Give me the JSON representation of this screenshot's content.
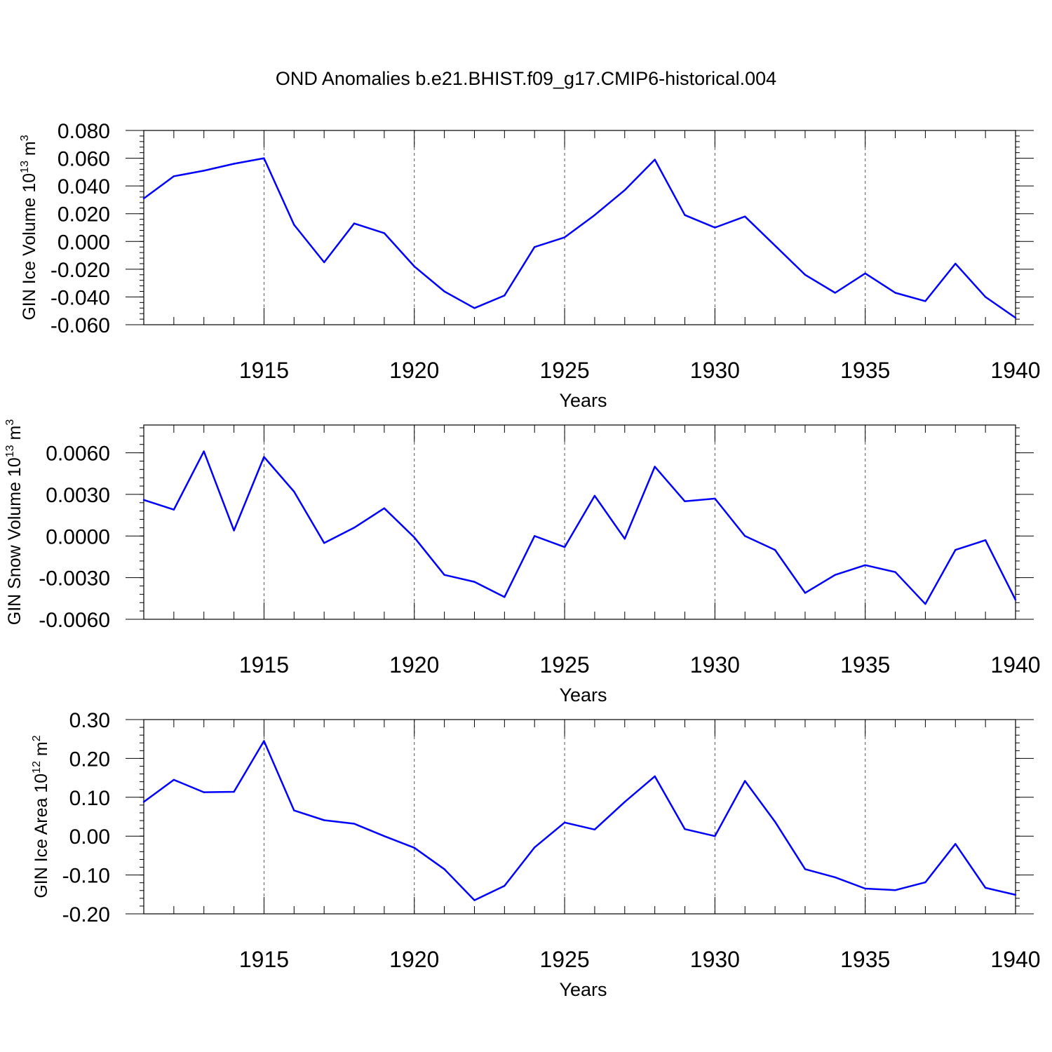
{
  "title": "OND Anomalies b.e21.BHIST.f09_g17.CMIP6-historical.004",
  "colors": {
    "series": "#0000ff",
    "axis": "#000000",
    "grid": "#555555"
  },
  "chart_data": [
    {
      "type": "line",
      "ylabel": {
        "main": "GIN Ice Volume 10",
        "sup": "13",
        "tail": " m",
        "sup2": "3"
      },
      "xlabel": "Years",
      "xlim": [
        1911,
        1940
      ],
      "ylim": [
        -0.06,
        0.08
      ],
      "y_ticks": [
        "0.080",
        "0.060",
        "0.040",
        "0.020",
        "0.000",
        "-0.020",
        "-0.040",
        "-0.060"
      ],
      "y_tick_values": [
        0.08,
        0.06,
        0.04,
        0.02,
        0.0,
        -0.02,
        -0.04,
        -0.06
      ],
      "x_ticks": [
        "1915",
        "1920",
        "1925",
        "1930",
        "1935",
        "1940"
      ],
      "x_tick_values": [
        1915,
        1920,
        1925,
        1930,
        1935,
        1940
      ],
      "grid": "vertical dashed at major x ticks",
      "x": [
        1911,
        1912,
        1913,
        1914,
        1915,
        1916,
        1917,
        1918,
        1919,
        1920,
        1921,
        1922,
        1923,
        1924,
        1925,
        1926,
        1927,
        1928,
        1929,
        1930,
        1931,
        1932,
        1933,
        1934,
        1935,
        1936,
        1937,
        1938,
        1939,
        1940
      ],
      "values": [
        0.031,
        0.047,
        0.051,
        0.056,
        0.06,
        0.012,
        -0.015,
        0.013,
        0.006,
        -0.018,
        -0.036,
        -0.048,
        -0.039,
        -0.004,
        0.003,
        0.019,
        0.037,
        0.059,
        0.019,
        0.01,
        0.018,
        -0.003,
        -0.024,
        -0.037,
        -0.023,
        -0.037,
        -0.043,
        -0.016,
        -0.04,
        -0.055
      ]
    },
    {
      "type": "line",
      "ylabel": {
        "main": "GIN Snow Volume 10",
        "sup": "13",
        "tail": " m",
        "sup2": "3"
      },
      "xlabel": "Years",
      "xlim": [
        1911,
        1940
      ],
      "ylim": [
        -0.006,
        0.008
      ],
      "y_ticks": [
        "0.0060",
        "0.0030",
        "0.0000",
        "-0.0030",
        "-0.0060"
      ],
      "y_tick_values": [
        0.006,
        0.003,
        0.0,
        -0.003,
        -0.006
      ],
      "x_ticks": [
        "1915",
        "1920",
        "1925",
        "1930",
        "1935",
        "1940"
      ],
      "x_tick_values": [
        1915,
        1920,
        1925,
        1930,
        1935,
        1940
      ],
      "grid": "vertical dashed at major x ticks",
      "x": [
        1911,
        1912,
        1913,
        1914,
        1915,
        1916,
        1917,
        1918,
        1919,
        1920,
        1921,
        1922,
        1923,
        1924,
        1925,
        1926,
        1927,
        1928,
        1929,
        1930,
        1931,
        1932,
        1933,
        1934,
        1935,
        1936,
        1937,
        1938,
        1939,
        1940
      ],
      "values": [
        0.0026,
        0.0019,
        0.0061,
        0.0004,
        0.0057,
        0.0032,
        -0.0005,
        0.0006,
        0.002,
        -0.0001,
        -0.0028,
        -0.0033,
        -0.0044,
        0.0,
        -0.0008,
        0.0029,
        -0.0002,
        0.005,
        0.0025,
        0.0027,
        0.0,
        -0.001,
        -0.0041,
        -0.0028,
        -0.0021,
        -0.0026,
        -0.0049,
        -0.001,
        -0.0003,
        -0.0046
      ]
    },
    {
      "type": "line",
      "ylabel": {
        "main": "GIN Ice Area 10",
        "sup": "12",
        "tail": " m",
        "sup2": "2"
      },
      "xlabel": "Years",
      "xlim": [
        1911,
        1940
      ],
      "ylim": [
        -0.2,
        0.3
      ],
      "y_ticks": [
        "0.30",
        "0.20",
        "0.10",
        "0.00",
        "-0.10",
        "-0.20"
      ],
      "y_tick_values": [
        0.3,
        0.2,
        0.1,
        0.0,
        -0.1,
        -0.2
      ],
      "x_ticks": [
        "1915",
        "1920",
        "1925",
        "1930",
        "1935",
        "1940"
      ],
      "x_tick_values": [
        1915,
        1920,
        1925,
        1930,
        1935,
        1940
      ],
      "grid": "vertical dashed at major x ticks",
      "x": [
        1911,
        1912,
        1913,
        1914,
        1915,
        1916,
        1917,
        1918,
        1919,
        1920,
        1921,
        1922,
        1923,
        1924,
        1925,
        1926,
        1927,
        1928,
        1929,
        1930,
        1931,
        1932,
        1933,
        1934,
        1935,
        1936,
        1937,
        1938,
        1939,
        1940
      ],
      "values": [
        0.088,
        0.145,
        0.113,
        0.114,
        0.245,
        0.066,
        0.041,
        0.032,
        0.0,
        -0.03,
        -0.085,
        -0.165,
        -0.128,
        -0.029,
        0.035,
        0.017,
        0.088,
        0.154,
        0.018,
        0.0,
        0.142,
        0.037,
        -0.085,
        -0.106,
        -0.135,
        -0.139,
        -0.119,
        -0.02,
        -0.133,
        -0.151
      ]
    }
  ]
}
